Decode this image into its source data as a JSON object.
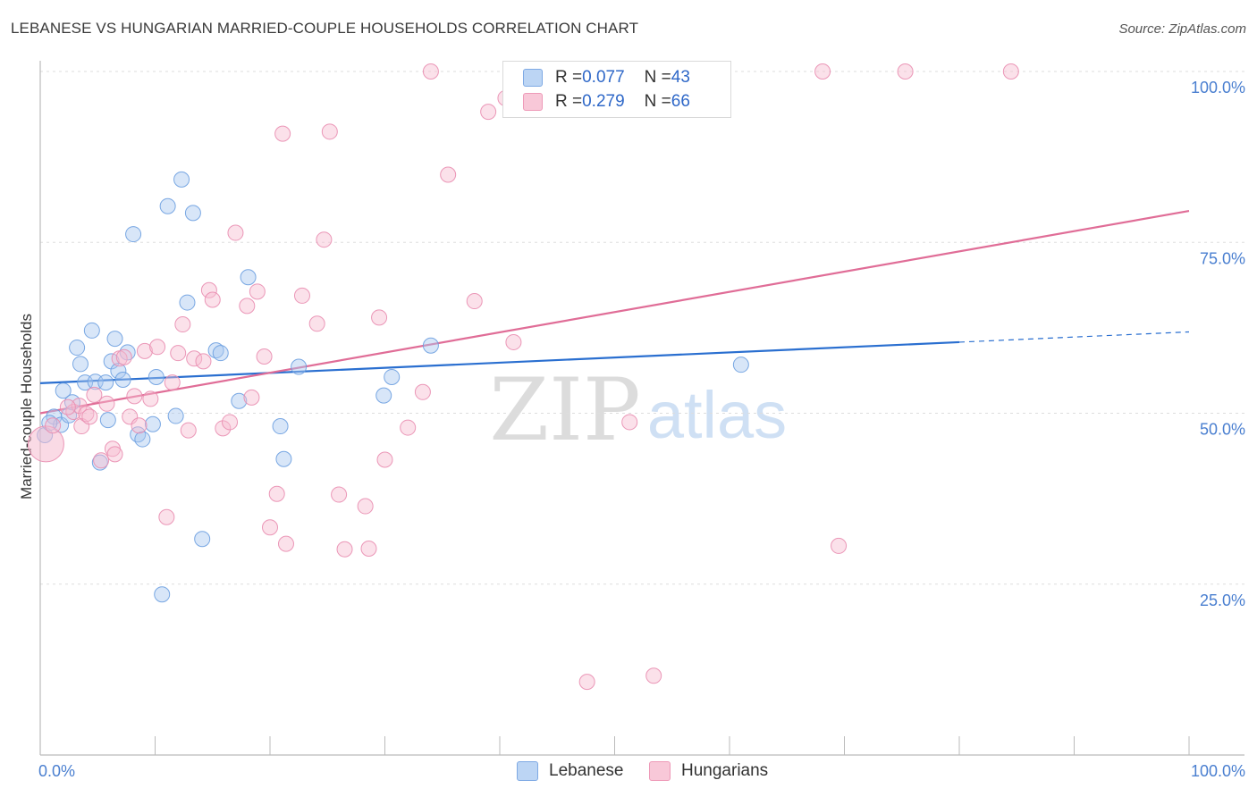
{
  "header": {
    "title": "LEBANESE VS HUNGARIAN MARRIED-COUPLE HOUSEHOLDS CORRELATION CHART",
    "source": "Source: ZipAtlas.com"
  },
  "watermark": {
    "zip": "ZIP",
    "atlas": "atlas"
  },
  "legend": {
    "r_label": "R = ",
    "n_label": "N = ",
    "rows": [
      {
        "name": "Lebanese",
        "r": "0.077",
        "n": "43",
        "color": "#a9c8f0"
      },
      {
        "name": "Hungarians",
        "r": "0.279",
        "n": "66",
        "color": "#f6bcd0"
      }
    ]
  },
  "chart_data": {
    "type": "scatter",
    "title": "LEBANESE VS HUNGARIAN MARRIED-COUPLE HOUSEHOLDS CORRELATION CHART",
    "xlabel": "",
    "ylabel": "Married-couple Households",
    "xlim": [
      0,
      100
    ],
    "ylim": [
      0,
      100
    ],
    "x_tick_labels": [
      "0.0%",
      "100.0%"
    ],
    "y_ticks": [
      25,
      50,
      75,
      100
    ],
    "y_tick_labels": [
      "25.0%",
      "50.0%",
      "75.0%",
      "100.0%"
    ],
    "grid": true,
    "series": [
      {
        "name": "Lebanese",
        "color": "#6b9fe0",
        "fill": "#a9c8f0",
        "line_color": "#2a6fd0",
        "trend": {
          "x0": 0,
          "y0": 54.4,
          "x1": 80,
          "y1": 60.4,
          "dash_to_x": 100,
          "dash_to_y": 61.9
        },
        "points": [
          [
            1.2,
            49.5
          ],
          [
            1.8,
            48.3
          ],
          [
            2,
            53.3
          ],
          [
            2.5,
            49.7
          ],
          [
            2.8,
            51.6
          ],
          [
            3.2,
            59.6
          ],
          [
            3.5,
            57.2
          ],
          [
            3.9,
            54.5
          ],
          [
            4.5,
            62.1
          ],
          [
            4.8,
            54.6
          ],
          [
            5.2,
            42.8
          ],
          [
            5.7,
            54.5
          ],
          [
            6.2,
            57.6
          ],
          [
            6.5,
            60.9
          ],
          [
            6.8,
            56.2
          ],
          [
            7.2,
            54.9
          ],
          [
            7.6,
            58.9
          ],
          [
            8.1,
            76.2
          ],
          [
            8.5,
            46.9
          ],
          [
            8.9,
            46.2
          ],
          [
            9.8,
            48.4
          ],
          [
            10.1,
            55.3
          ],
          [
            10.6,
            23.5
          ],
          [
            11.1,
            80.3
          ],
          [
            11.8,
            49.6
          ],
          [
            12.3,
            84.2
          ],
          [
            12.8,
            66.2
          ],
          [
            13.3,
            79.3
          ],
          [
            14.1,
            31.6
          ],
          [
            15.3,
            59.2
          ],
          [
            15.7,
            58.8
          ],
          [
            17.3,
            51.8
          ],
          [
            18.1,
            69.9
          ],
          [
            20.9,
            48.1
          ],
          [
            21.2,
            43.3
          ],
          [
            22.5,
            56.8
          ],
          [
            29.9,
            52.6
          ],
          [
            30.6,
            55.3
          ],
          [
            34,
            59.9
          ],
          [
            61,
            57.1
          ],
          [
            0.4,
            46.8
          ],
          [
            0.8,
            48.6
          ],
          [
            5.9,
            49.0
          ]
        ]
      },
      {
        "name": "Hungarians",
        "color": "#e98db0",
        "fill": "#f6bcd0",
        "line_color": "#e06d97",
        "trend": {
          "x0": 0,
          "y0": 50.0,
          "x1": 100,
          "y1": 79.6
        },
        "points": [
          [
            0.5,
            45.5
          ],
          [
            1.1,
            48.2
          ],
          [
            2.9,
            50.2
          ],
          [
            3.4,
            51.1
          ],
          [
            3.6,
            48.1
          ],
          [
            4.0,
            49.9
          ],
          [
            4.3,
            49.5
          ],
          [
            4.7,
            52.7
          ],
          [
            5.3,
            43.1
          ],
          [
            5.8,
            51.4
          ],
          [
            6.3,
            44.8
          ],
          [
            6.9,
            58.0
          ],
          [
            7.3,
            58.2
          ],
          [
            7.8,
            49.5
          ],
          [
            8.2,
            52.5
          ],
          [
            8.6,
            48.2
          ],
          [
            9.1,
            59.1
          ],
          [
            9.6,
            52.1
          ],
          [
            10.2,
            59.7
          ],
          [
            11.0,
            34.8
          ],
          [
            11.5,
            54.5
          ],
          [
            12.0,
            58.8
          ],
          [
            12.4,
            63.0
          ],
          [
            12.9,
            47.5
          ],
          [
            13.4,
            58.0
          ],
          [
            14.2,
            57.6
          ],
          [
            14.7,
            68.0
          ],
          [
            15.0,
            66.6
          ],
          [
            15.9,
            47.8
          ],
          [
            16.5,
            48.7
          ],
          [
            17.0,
            76.4
          ],
          [
            18.0,
            65.7
          ],
          [
            18.4,
            52.3
          ],
          [
            18.9,
            67.8
          ],
          [
            19.5,
            58.3
          ],
          [
            20.0,
            33.3
          ],
          [
            20.6,
            38.2
          ],
          [
            21.1,
            90.9
          ],
          [
            21.4,
            30.9
          ],
          [
            22.8,
            67.2
          ],
          [
            24.1,
            63.1
          ],
          [
            24.7,
            75.4
          ],
          [
            25.2,
            91.2
          ],
          [
            26.0,
            38.1
          ],
          [
            26.5,
            30.1
          ],
          [
            28.3,
            36.4
          ],
          [
            28.6,
            30.2
          ],
          [
            29.5,
            64.0
          ],
          [
            30.0,
            43.2
          ],
          [
            32.0,
            47.9
          ],
          [
            33.3,
            53.1
          ],
          [
            34.0,
            100.0
          ],
          [
            35.5,
            84.9
          ],
          [
            37.8,
            66.4
          ],
          [
            39.0,
            94.1
          ],
          [
            40.5,
            96.1
          ],
          [
            41.2,
            60.4
          ],
          [
            47.6,
            10.7
          ],
          [
            51.3,
            48.7
          ],
          [
            53.4,
            11.6
          ],
          [
            68.1,
            100.0
          ],
          [
            69.5,
            30.6
          ],
          [
            75.3,
            100.0
          ],
          [
            84.5,
            100.0
          ],
          [
            6.5,
            44.0
          ],
          [
            2.4,
            50.9
          ]
        ]
      }
    ]
  }
}
